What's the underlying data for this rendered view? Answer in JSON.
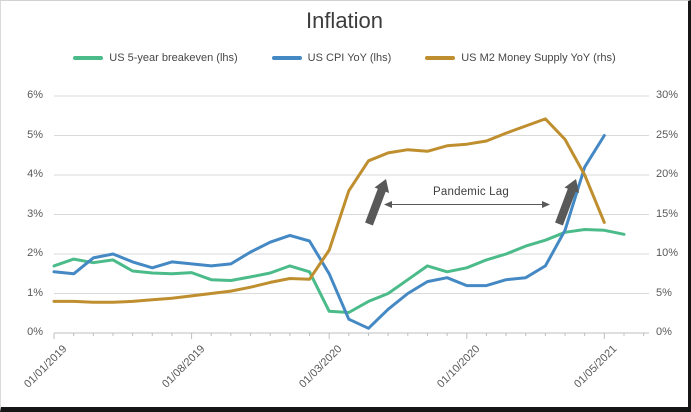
{
  "chart": {
    "style_colors": {
      "gridline": "#d9d9d9",
      "axis_line": "#bfbfbf",
      "tick_label": "#595959",
      "title_text": "#3d3d3d",
      "annotation_arrow": "#595959"
    }
  },
  "chart_data": {
    "type": "line",
    "title": "Inflation",
    "legend_position": "top",
    "grid": true,
    "annotation": {
      "label": "Pandemic Lag"
    },
    "left_axis": {
      "ticks": [
        "6%",
        "5%",
        "4%",
        "3%",
        "2%",
        "1%",
        "0%"
      ],
      "min": 0,
      "max": 6
    },
    "right_axis": {
      "ticks": [
        "30%",
        "25%",
        "20%",
        "15%",
        "10%",
        "5%",
        "0%"
      ],
      "min": 0,
      "max": 30
    },
    "x_tick_labels": [
      "01/01/2019",
      "01/08/2019",
      "01/03/2020",
      "01/10/2020",
      "01/05/2021"
    ],
    "x_tick_indices": [
      0,
      7,
      14,
      21,
      28
    ],
    "x_months": [
      "2019-01",
      "2019-02",
      "2019-03",
      "2019-04",
      "2019-05",
      "2019-06",
      "2019-07",
      "2019-08",
      "2019-09",
      "2019-10",
      "2019-11",
      "2019-12",
      "2020-01",
      "2020-02",
      "2020-03",
      "2020-04",
      "2020-05",
      "2020-06",
      "2020-07",
      "2020-08",
      "2020-09",
      "2020-10",
      "2020-11",
      "2020-12",
      "2021-01",
      "2021-02",
      "2021-03",
      "2021-04",
      "2021-05",
      "2021-06"
    ],
    "series": [
      {
        "name": "US 5-year breakeven (lhs)",
        "axis": "left",
        "color": "#4cbb8a",
        "values": [
          1.7,
          1.87,
          1.78,
          1.85,
          1.57,
          1.52,
          1.5,
          1.53,
          1.35,
          1.33,
          1.42,
          1.52,
          1.7,
          1.55,
          0.55,
          0.52,
          0.8,
          1.0,
          1.35,
          1.7,
          1.55,
          1.65,
          1.85,
          2.0,
          2.2,
          2.35,
          2.55,
          2.62,
          2.6,
          2.5
        ]
      },
      {
        "name": "US CPI YoY (lhs)",
        "axis": "left",
        "color": "#4589c4",
        "values": [
          1.55,
          1.5,
          1.9,
          2.0,
          1.8,
          1.65,
          1.8,
          1.75,
          1.7,
          1.75,
          2.05,
          2.3,
          2.47,
          2.33,
          1.5,
          0.35,
          0.12,
          0.6,
          1.0,
          1.3,
          1.4,
          1.2,
          1.2,
          1.35,
          1.4,
          1.7,
          2.6,
          4.2,
          5.0,
          null
        ]
      },
      {
        "name": "US M2 Money Supply YoY (rhs)",
        "axis": "right",
        "color": "#bf8f2f",
        "values": [
          4.0,
          4.0,
          3.9,
          3.9,
          4.0,
          4.2,
          4.4,
          4.7,
          5.0,
          5.3,
          5.8,
          6.4,
          6.9,
          6.8,
          10.5,
          18.0,
          21.8,
          22.8,
          23.2,
          23.0,
          23.7,
          23.9,
          24.3,
          25.3,
          26.2,
          27.1,
          24.5,
          20.0,
          14.0,
          null
        ]
      }
    ]
  }
}
